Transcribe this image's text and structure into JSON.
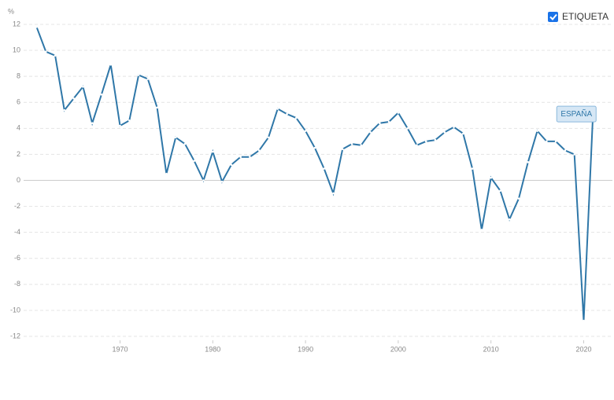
{
  "chart_data": {
    "type": "line",
    "y_unit": "%",
    "legend_label": "ETIQUETA",
    "x": [
      1961,
      1962,
      1963,
      1964,
      1965,
      1966,
      1967,
      1968,
      1969,
      1970,
      1971,
      1972,
      1973,
      1974,
      1975,
      1976,
      1977,
      1978,
      1979,
      1980,
      1981,
      1982,
      1983,
      1984,
      1985,
      1986,
      1987,
      1988,
      1989,
      1990,
      1991,
      1992,
      1993,
      1994,
      1995,
      1996,
      1997,
      1998,
      1999,
      2000,
      2001,
      2002,
      2003,
      2004,
      2005,
      2006,
      2007,
      2008,
      2009,
      2010,
      2011,
      2012,
      2013,
      2014,
      2015,
      2016,
      2017,
      2018,
      2019,
      2020,
      2021
    ],
    "series": [
      {
        "name": "ESPAÑA",
        "color": "#2f77a8",
        "values": [
          11.8,
          9.9,
          9.6,
          5.4,
          6.3,
          7.2,
          4.4,
          6.6,
          8.9,
          4.2,
          4.6,
          8.1,
          7.8,
          5.6,
          0.5,
          3.3,
          2.8,
          1.5,
          0.0,
          2.2,
          -0.1,
          1.2,
          1.8,
          1.8,
          2.3,
          3.3,
          5.5,
          5.1,
          4.8,
          3.8,
          2.5,
          0.9,
          -1.0,
          2.4,
          2.8,
          2.7,
          3.7,
          4.4,
          4.5,
          5.2,
          4.0,
          2.7,
          3.0,
          3.1,
          3.7,
          4.1,
          3.6,
          0.9,
          -3.8,
          0.2,
          -0.8,
          -3.0,
          -1.4,
          1.4,
          3.8,
          3.0,
          3.0,
          2.3,
          2.0,
          -10.8,
          5.1
        ]
      }
    ],
    "xlim": [
      1959.6,
      2023.1
    ],
    "xticks": [
      1970,
      1980,
      1990,
      2000,
      2010,
      2020
    ],
    "ylim": [
      -12.3,
      12.3
    ],
    "yticks": [
      -12,
      -10,
      -8,
      -6,
      -4,
      -2,
      0,
      2,
      4,
      6,
      8,
      10,
      12
    ],
    "grid": true
  }
}
